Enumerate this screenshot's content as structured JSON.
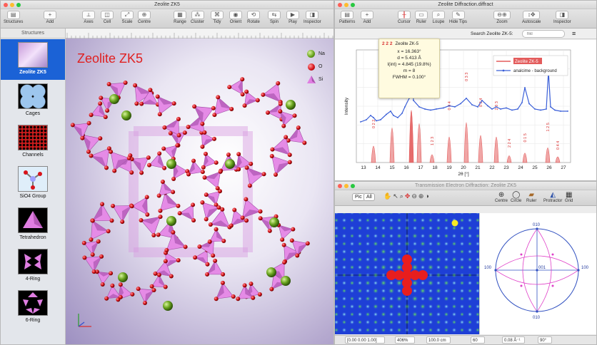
{
  "main_window": {
    "title": "Zeolite ZK5",
    "toolbar": [
      "Structures",
      "Add",
      "Axes",
      "Cell",
      "Scale",
      "Centre",
      "Range",
      "Cluster",
      "Tidy",
      "Orient",
      "Rotate",
      "Spin",
      "Play",
      "Inspector"
    ],
    "sidebar_header": "Structures",
    "sidebar_items": [
      "Zeolite ZK5",
      "Cages",
      "Channels",
      "SiO4 Group",
      "Tetrahedron",
      "4-Ring",
      "6-Ring"
    ],
    "structure_title": "Zeolite ZK5",
    "legend": [
      {
        "label": "Na",
        "color": "#6aa51f"
      },
      {
        "label": "O",
        "color": "#d8141b"
      },
      {
        "label": "Si",
        "color": "#e07ee2"
      }
    ]
  },
  "diffraction_window": {
    "title": "Zeolite Diffraction.diffract",
    "toolbar": [
      "Patterns",
      "Add",
      "Cursor",
      "Ruler",
      "Loupe",
      "Hide Tips",
      "Zoom",
      "Autoscale",
      "Inspector"
    ],
    "search_label": "Search Zeolite ZK-5:",
    "search_placeholder": "hkl",
    "tooltip": {
      "hkl": "2 2 2",
      "phase": "Zeolite ZK-5",
      "lines": [
        "x = 16.363°",
        "d = 5.413 Å",
        "I(int) = 4.845 (19.8%)",
        "m = 8",
        "FWHM = 0.100°"
      ]
    }
  },
  "chart_data": {
    "type": "line",
    "xlabel": "2θ [°]",
    "ylabel": "Intensity",
    "xlim": [
      12.5,
      27.5
    ],
    "x_ticks": [
      "13",
      "14",
      "15",
      "16",
      "17",
      "18",
      "19",
      "20",
      "21",
      "22",
      "23",
      "24",
      "25",
      "26",
      "27"
    ],
    "series": [
      {
        "name": "Zeolite ZK-5",
        "color": "#e35c5c",
        "kind": "peaks",
        "peaks": [
          {
            "x": 13.7,
            "h": 0.28,
            "label": "0 2 2"
          },
          {
            "x": 15.0,
            "h": 0.62,
            "label": "0 1 3"
          },
          {
            "x": 16.35,
            "h": 0.95,
            "label": "2 2 2"
          },
          {
            "x": 16.9,
            "h": 0.7,
            "label": ""
          },
          {
            "x": 17.8,
            "h": 0.12,
            "label": "1 2 3"
          },
          {
            "x": 19.0,
            "h": 0.45,
            "label": "0 0 4"
          },
          {
            "x": 20.2,
            "h": 0.72,
            "label": "0 3 3"
          },
          {
            "x": 21.2,
            "h": 0.48,
            "label": "0 2 4"
          },
          {
            "x": 22.3,
            "h": 0.45,
            "label": "2 3 3"
          },
          {
            "x": 23.2,
            "h": 0.1,
            "label": "2 2 4"
          },
          {
            "x": 24.3,
            "h": 0.15,
            "label": "0 1 5"
          },
          {
            "x": 25.9,
            "h": 0.25,
            "label": "1 2 5"
          },
          {
            "x": 26.6,
            "h": 0.08,
            "label": "0 4 4"
          }
        ]
      },
      {
        "name": "analcime - background",
        "color": "#3a5fd8",
        "kind": "profile",
        "x": [
          12.8,
          13.2,
          13.5,
          13.7,
          13.9,
          14.2,
          14.6,
          14.9,
          15.1,
          15.4,
          15.7,
          15.9,
          16.2,
          16.35,
          16.5,
          16.9,
          17.3,
          17.7,
          18.1,
          18.6,
          19.0,
          19.4,
          19.8,
          20.2,
          20.6,
          21.0,
          21.3,
          21.7,
          22.0,
          22.3,
          22.6,
          23.0,
          23.4,
          23.8,
          24.1,
          24.3,
          24.6,
          25.0,
          25.4,
          25.8,
          25.95,
          26.1,
          26.4,
          26.8,
          27.3
        ],
        "y": [
          0.38,
          0.4,
          0.44,
          0.42,
          0.39,
          0.4,
          0.45,
          0.48,
          0.44,
          0.42,
          0.46,
          0.52,
          0.6,
          0.98,
          0.58,
          0.52,
          0.5,
          0.49,
          0.5,
          0.51,
          0.53,
          0.52,
          0.55,
          0.6,
          0.54,
          0.52,
          0.58,
          0.53,
          0.5,
          0.52,
          0.5,
          0.51,
          0.49,
          0.5,
          0.56,
          0.7,
          0.55,
          0.5,
          0.49,
          0.5,
          0.85,
          0.52,
          0.49,
          0.48,
          0.48
        ]
      }
    ]
  },
  "ted_window": {
    "title": "Transmission Electron Diffraction: Zeolite ZK5",
    "toolbar": [
      "Pic",
      "All",
      "Centre",
      "Circle",
      "Ruler",
      "Protractor",
      "Grid"
    ],
    "stereo_labels": [
      "010",
      "100",
      "001",
      "100",
      "010"
    ],
    "status": [
      "[0.00 0.00 1.00]",
      "406%",
      "100.0 cm",
      "60",
      "0.08 Å⁻¹",
      "90°"
    ]
  }
}
